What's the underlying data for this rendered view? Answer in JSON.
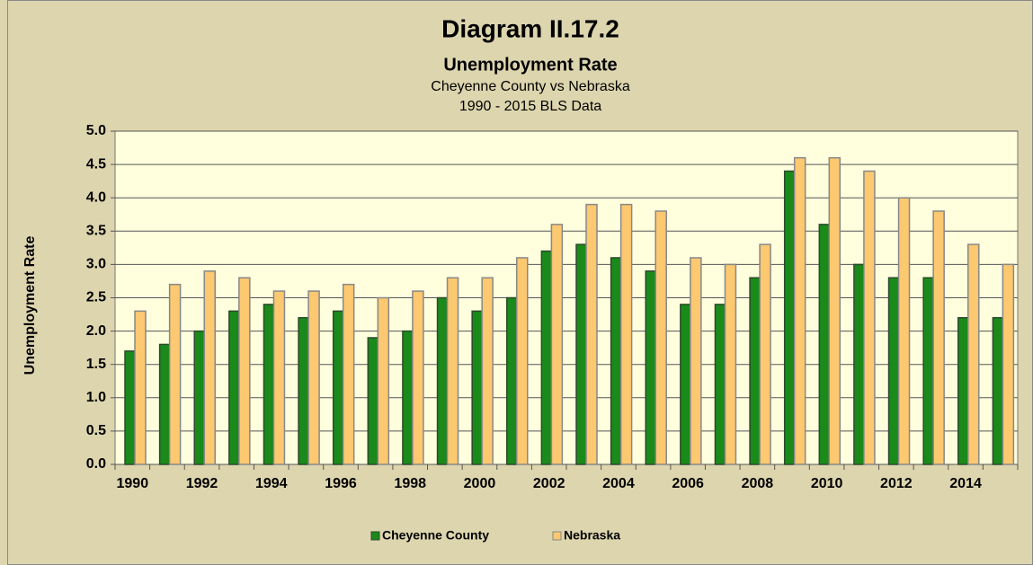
{
  "chart_data": {
    "type": "bar",
    "title": "Diagram II.17.2",
    "subtitle": "Unemployment Rate",
    "subtitle2": "Cheyenne County vs Nebraska",
    "subtitle3": "1990 - 2015 BLS Data",
    "y_label": "Unemployment Rate",
    "categories": [
      "1990",
      null,
      "1992",
      null,
      "1994",
      null,
      "1996",
      null,
      "1998",
      null,
      "2000",
      null,
      "2002",
      null,
      "2004",
      null,
      "2006",
      null,
      "2008",
      null,
      "2010",
      null,
      "2012",
      null,
      "2014",
      null
    ],
    "series": [
      {
        "name": "Cheyenne County",
        "color": "#1a8a1a",
        "values": [
          1.7,
          1.8,
          2.0,
          2.3,
          2.4,
          2.2,
          2.3,
          1.9,
          2.0,
          2.5,
          2.3,
          2.5,
          3.2,
          3.3,
          3.1,
          2.9,
          2.4,
          2.4,
          2.8,
          4.4,
          3.6,
          3.0,
          2.8,
          2.8,
          2.2,
          2.2
        ]
      },
      {
        "name": "Nebraska",
        "color": "#fcc870",
        "values": [
          2.3,
          2.7,
          2.9,
          2.8,
          2.6,
          2.6,
          2.7,
          2.5,
          2.6,
          2.8,
          2.8,
          3.1,
          3.6,
          3.9,
          3.9,
          3.8,
          3.1,
          3.0,
          3.3,
          4.6,
          4.6,
          4.4,
          4.0,
          3.8,
          3.3,
          3.0
        ]
      }
    ],
    "ylim": [
      0,
      5
    ],
    "yticks": [
      {
        "value": 0,
        "label": "0.0"
      },
      0.5,
      {
        "value": 1,
        "label": "1.0"
      },
      1.5,
      {
        "value": 2,
        "label": "2.0"
      },
      2.5,
      {
        "value": 3,
        "label": "3.0"
      },
      3.5,
      {
        "value": 4,
        "label": "4.0"
      },
      4.5,
      {
        "value": 5,
        "label": "5.0"
      }
    ],
    "grid": true,
    "legend": "bottom"
  }
}
